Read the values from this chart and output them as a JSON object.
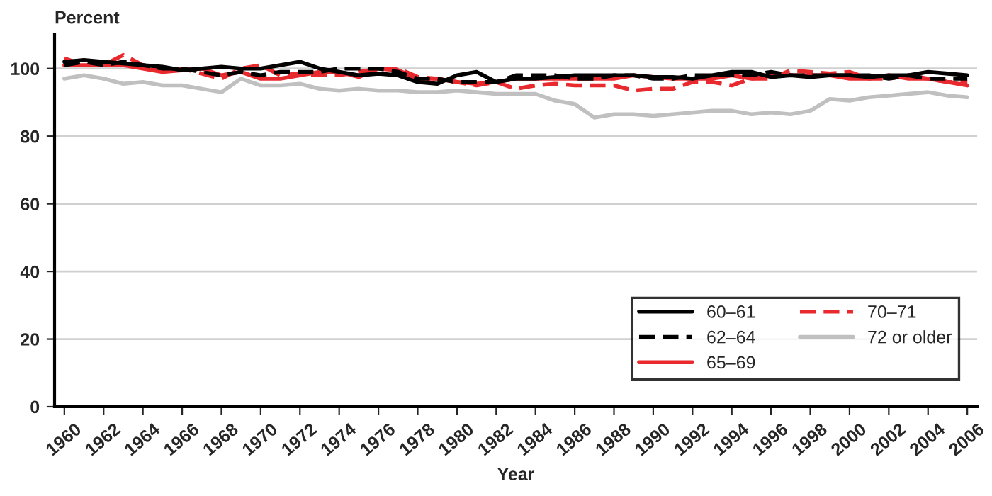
{
  "chart_data": {
    "type": "line",
    "ylabel": "Percent",
    "xlabel": "Year",
    "x": [
      1960,
      1961,
      1962,
      1963,
      1964,
      1965,
      1966,
      1967,
      1968,
      1969,
      1970,
      1971,
      1972,
      1973,
      1974,
      1975,
      1976,
      1977,
      1978,
      1979,
      1980,
      1981,
      1982,
      1983,
      1984,
      1985,
      1986,
      1987,
      1988,
      1989,
      1990,
      1991,
      1992,
      1993,
      1994,
      1995,
      1996,
      1997,
      1998,
      1999,
      2000,
      2001,
      2002,
      2003,
      2004,
      2005,
      2006
    ],
    "series": [
      {
        "name": "60–61",
        "color": "#000000",
        "line_style": "solid",
        "values": [
          102,
          102.5,
          102,
          101.5,
          101,
          100.5,
          99.5,
          100,
          100.5,
          100,
          100,
          101,
          102,
          100,
          99,
          98,
          98.5,
          98,
          96,
          95.5,
          98,
          99,
          96,
          97,
          97,
          97.5,
          98,
          98,
          98,
          98,
          97.5,
          97.5,
          97,
          98,
          99,
          99,
          97.5,
          98,
          97.5,
          98,
          98,
          97.5,
          98,
          98,
          99,
          98.5,
          98
        ]
      },
      {
        "name": "62–64",
        "color": "#000000",
        "line_style": "dashed",
        "values": [
          101,
          102,
          101,
          102,
          101,
          100,
          100,
          99,
          98,
          99,
          98,
          99,
          99,
          99,
          100,
          100,
          100,
          99,
          97,
          97,
          96,
          96,
          96,
          98,
          98,
          98,
          97,
          97,
          98,
          98,
          97,
          97,
          98,
          98,
          98,
          98,
          99,
          98,
          98,
          98,
          98,
          98,
          97,
          98,
          97,
          97,
          97
        ]
      },
      {
        "name": "65–69",
        "color": "#e8292e",
        "line_style": "solid",
        "values": [
          101,
          101,
          101,
          101,
          100,
          99,
          99.5,
          100,
          98,
          99,
          97,
          97,
          98,
          99,
          99,
          97.5,
          100,
          99.5,
          97,
          97,
          96,
          95.5,
          96,
          97,
          97,
          97,
          97,
          97,
          97,
          98,
          97.5,
          97,
          97,
          97,
          98,
          97,
          98,
          98,
          98,
          98,
          97,
          97,
          98,
          97,
          97,
          96,
          95
        ]
      },
      {
        "name": "70–71",
        "color": "#e8292e",
        "line_style": "dashed",
        "values": [
          103,
          101,
          101,
          104,
          101,
          100,
          100,
          98.5,
          97,
          100,
          101,
          98,
          98.5,
          98,
          98,
          99,
          100,
          100,
          97.5,
          97,
          96,
          95,
          96,
          94,
          95,
          95.5,
          95,
          95,
          95,
          93.5,
          94,
          94,
          96,
          96,
          95,
          97,
          97,
          99.5,
          99,
          98.5,
          99,
          97,
          97,
          98,
          97,
          96,
          96
        ]
      },
      {
        "name": "72 or older",
        "color": "#c0c0c0",
        "line_style": "solid",
        "values": [
          97,
          98,
          97,
          95.5,
          96,
          95,
          95,
          94,
          93,
          97,
          95,
          95,
          95.5,
          94,
          93.5,
          94,
          93.5,
          93.5,
          93,
          93,
          93.5,
          93,
          92.5,
          92.5,
          92.5,
          90.5,
          89.5,
          85.5,
          86.5,
          86.5,
          86,
          86.5,
          87,
          87.5,
          87.5,
          86.5,
          87,
          86.5,
          87.5,
          91,
          90.5,
          91.5,
          92,
          92.5,
          93,
          92,
          91.5
        ]
      }
    ],
    "xlim": [
      1959.5,
      2006.5
    ],
    "xticks": [
      1960,
      1962,
      1964,
      1966,
      1968,
      1970,
      1972,
      1974,
      1976,
      1978,
      1980,
      1982,
      1984,
      1986,
      1988,
      1990,
      1992,
      1994,
      1996,
      1998,
      2000,
      2002,
      2004,
      2006
    ],
    "ylim": [
      0,
      110
    ],
    "yticks": [
      0,
      20,
      40,
      60,
      80,
      100
    ],
    "grid": "y",
    "legend": "bottom right"
  }
}
